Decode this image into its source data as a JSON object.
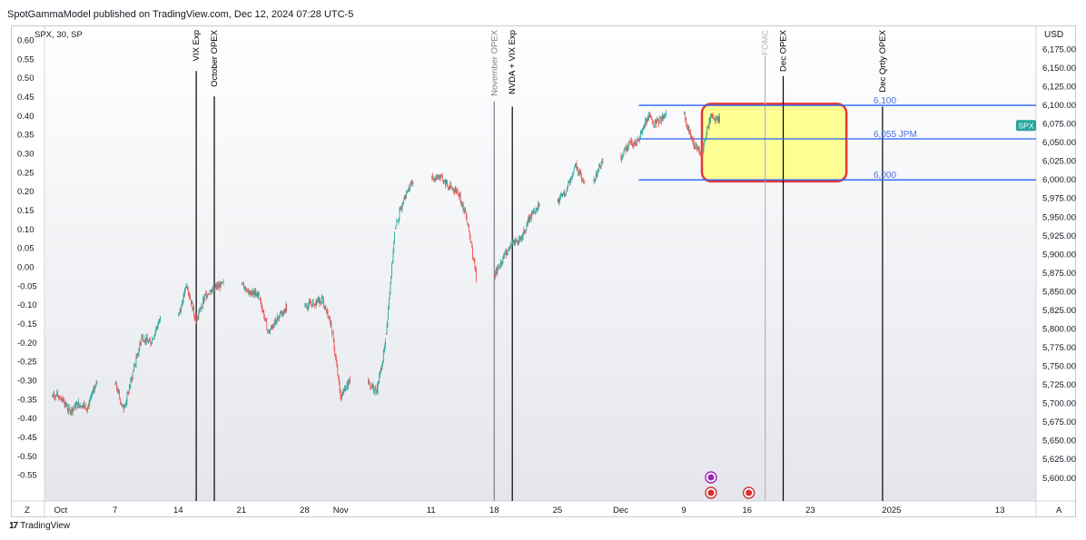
{
  "header": {
    "text": "SpotGammaModel published on TradingView.com, Dec 12, 2024 07:28 UTC-5"
  },
  "symbol": {
    "text": "SPX, 30, SP"
  },
  "axes": {
    "currency": "USD",
    "corner_left": "Z",
    "corner_right": "A"
  },
  "footer": {
    "logo": "17",
    "brand": "TradingView"
  },
  "colors": {
    "up": "#26a69a",
    "down": "#ef5350",
    "level_line": "#2962ff",
    "highlight_fill": "#ffff80",
    "highlight_border": "#e53935",
    "event_line": "#000000",
    "fomc_line": "#b2b5be",
    "spx_badge": "#26a69a"
  },
  "chart_data": {
    "type": "candlestick",
    "symbol": "SPX",
    "interval": "30",
    "price_axis": {
      "unit": "USD",
      "range": [
        5590,
        6195
      ],
      "ticks": [
        5600,
        5625,
        5650,
        5675,
        5700,
        5725,
        5750,
        5775,
        5800,
        5825,
        5850,
        5875,
        5900,
        5925,
        5950,
        5975,
        6000,
        6025,
        6050,
        6075,
        6100,
        6125,
        6150,
        6175
      ],
      "tick_labels": [
        "5,600.00",
        "5,625.00",
        "5,650.00",
        "5,675.00",
        "5,700.00",
        "5,725.00",
        "5,750.00",
        "5,775.00",
        "5,800.00",
        "5,825.00",
        "5,850.00",
        "5,875.00",
        "5,900.00",
        "5,925.00",
        "5,950.00",
        "5,975.00",
        "6,000.00",
        "6,025.00",
        "6,050.00",
        "6,075.00",
        "6,100.00",
        "6,125.00",
        "6,150.00",
        "6,175.00"
      ]
    },
    "left_axis": {
      "ticks": [
        -0.55,
        -0.5,
        -0.45,
        -0.4,
        -0.35,
        -0.3,
        -0.25,
        -0.2,
        -0.15,
        -0.1,
        -0.05,
        0.0,
        0.05,
        0.1,
        0.15,
        0.2,
        0.25,
        0.3,
        0.35,
        0.4,
        0.45,
        0.5,
        0.55,
        0.6
      ],
      "tick_labels": [
        "-0.55",
        "-0.50",
        "-0.45",
        "-0.40",
        "-0.35",
        "-0.30",
        "-0.25",
        "-0.20",
        "-0.15",
        "-0.10",
        "-0.05",
        "0.00",
        "0.05",
        "0.10",
        "0.15",
        "0.20",
        "0.25",
        "0.30",
        "0.35",
        "0.40",
        "0.45",
        "0.50",
        "0.55",
        "0.60"
      ]
    },
    "time_axis": {
      "start": "2024-09-30",
      "end": "2025-01-17",
      "tick_dates": [
        "2024-10-01",
        "2024-10-07",
        "2024-10-14",
        "2024-10-21",
        "2024-10-28",
        "2024-11-01",
        "2024-11-11",
        "2024-11-18",
        "2024-11-25",
        "2024-12-02",
        "2024-12-09",
        "2024-12-16",
        "2024-12-23",
        "2025-01-01",
        "2025-01-13"
      ],
      "tick_labels": [
        "Oct",
        "7",
        "14",
        "21",
        "28",
        "Nov",
        "11",
        "18",
        "25",
        "Dec",
        "9",
        "16",
        "23",
        "2025",
        "13"
      ]
    },
    "closes": [
      [
        "2024-09-30",
        5710
      ],
      [
        "2024-10-01",
        5690
      ],
      [
        "2024-10-02",
        5700
      ],
      [
        "2024-10-03",
        5695
      ],
      [
        "2024-10-04",
        5730
      ],
      [
        "2024-10-07",
        5690
      ],
      [
        "2024-10-08",
        5740
      ],
      [
        "2024-10-09",
        5790
      ],
      [
        "2024-10-10",
        5780
      ],
      [
        "2024-10-11",
        5815
      ],
      [
        "2024-10-14",
        5860
      ],
      [
        "2024-10-15",
        5810
      ],
      [
        "2024-10-16",
        5845
      ],
      [
        "2024-10-17",
        5855
      ],
      [
        "2024-10-18",
        5860
      ],
      [
        "2024-10-21",
        5850
      ],
      [
        "2024-10-22",
        5845
      ],
      [
        "2024-10-23",
        5795
      ],
      [
        "2024-10-24",
        5815
      ],
      [
        "2024-10-25",
        5830
      ],
      [
        "2024-10-28",
        5835
      ],
      [
        "2024-10-29",
        5840
      ],
      [
        "2024-10-30",
        5805
      ],
      [
        "2024-10-31",
        5710
      ],
      [
        "2024-11-01",
        5730
      ],
      [
        "2024-11-04",
        5715
      ],
      [
        "2024-11-05",
        5780
      ],
      [
        "2024-11-06",
        5930
      ],
      [
        "2024-11-07",
        5975
      ],
      [
        "2024-11-08",
        6000
      ],
      [
        "2024-11-11",
        6005
      ],
      [
        "2024-11-12",
        5990
      ],
      [
        "2024-11-13",
        5985
      ],
      [
        "2024-11-14",
        5950
      ],
      [
        "2024-11-15",
        5870
      ],
      [
        "2024-11-18",
        5895
      ],
      [
        "2024-11-19",
        5915
      ],
      [
        "2024-11-20",
        5920
      ],
      [
        "2024-11-21",
        5950
      ],
      [
        "2024-11-22",
        5970
      ],
      [
        "2024-11-25",
        5985
      ],
      [
        "2024-11-26",
        6020
      ],
      [
        "2024-11-27",
        5995
      ],
      [
        "2024-11-29",
        6030
      ],
      [
        "2024-12-02",
        6050
      ],
      [
        "2024-12-03",
        6050
      ],
      [
        "2024-12-04",
        6085
      ],
      [
        "2024-12-05",
        6075
      ],
      [
        "2024-12-06",
        6090
      ],
      [
        "2024-12-09",
        6050
      ],
      [
        "2024-12-10",
        6035
      ],
      [
        "2024-12-11",
        6085
      ],
      [
        "2024-12-12",
        6080
      ]
    ],
    "events": [
      {
        "date": "2024-10-16",
        "label": "VIX Exp",
        "color": "black"
      },
      {
        "date": "2024-10-18",
        "label": "October OPEX",
        "color": "black"
      },
      {
        "date": "2024-11-18",
        "label": "November OPEX",
        "color": "gray"
      },
      {
        "date": "2024-11-20",
        "label": "NVDA + VIX Exp",
        "color": "black"
      },
      {
        "date": "2024-12-18",
        "label": "FOMC",
        "color": "light-gray"
      },
      {
        "date": "2024-12-20",
        "label": "Dec OPEX",
        "color": "black"
      },
      {
        "date": "2024-12-31",
        "label": "Dec Qrtly OPEX",
        "color": "black"
      }
    ],
    "levels": [
      {
        "value": 6100,
        "label": "6,100"
      },
      {
        "value": 6055,
        "label": "6,055 JPM"
      },
      {
        "value": 6000,
        "label": "6,000"
      }
    ],
    "levels_start": "2024-12-04",
    "highlight": {
      "from": "2024-12-11",
      "to": "2024-12-27",
      "low": 5998,
      "high": 6102
    },
    "last_price_label": "SPX",
    "last_price": 6073
  }
}
